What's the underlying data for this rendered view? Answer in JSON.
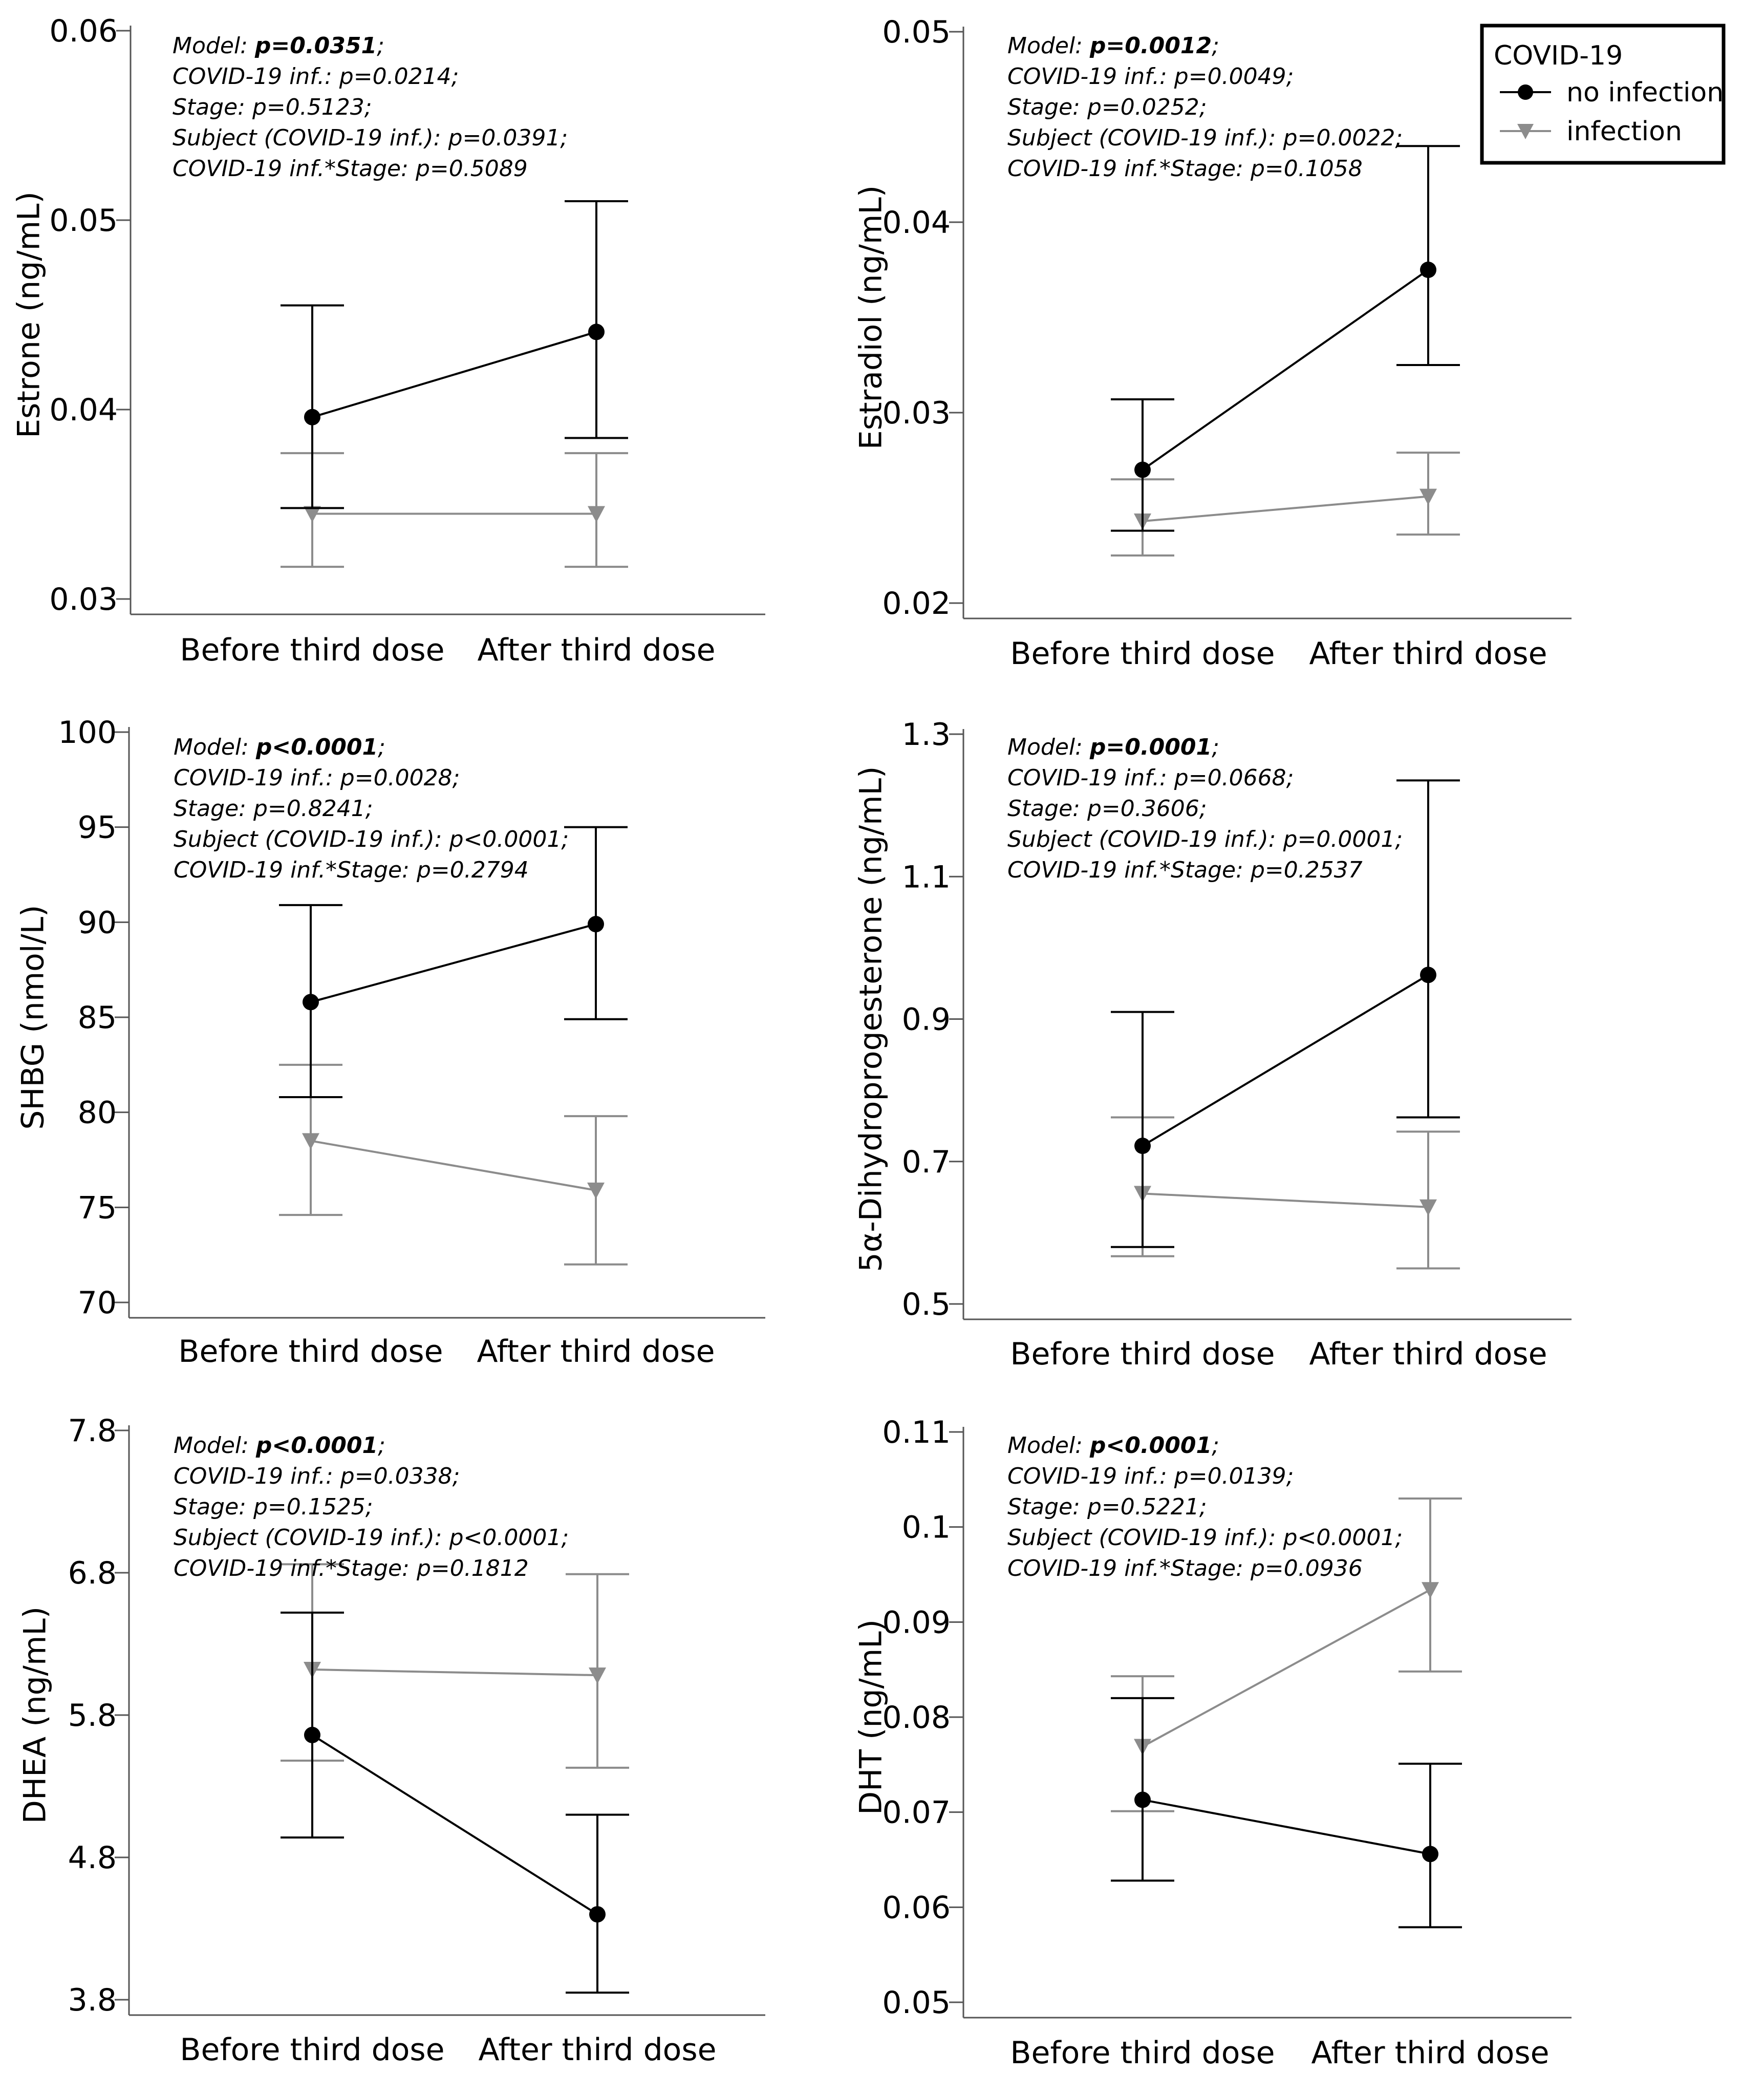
{
  "legend": {
    "title": "COVID-19",
    "entries": [
      {
        "label": "no infection",
        "color": "#000000",
        "marker": "circle"
      },
      {
        "label": "infection",
        "color": "#8c8c8c",
        "marker": "triangle-down"
      }
    ]
  },
  "chart_data": [
    {
      "type": "line",
      "ylabel": "Estrone (ng/mL)",
      "categories": [
        "Before third dose",
        "After third dose"
      ],
      "ylim": [
        0.03,
        0.06
      ],
      "yticks": [
        0.03,
        0.04,
        0.05,
        0.06
      ],
      "ytick_labels": [
        "0.03",
        "0.04",
        "0.05",
        "0.06"
      ],
      "series": [
        {
          "name": "no infection",
          "values": [
            0.0396,
            0.0441
          ],
          "lower": [
            0.0348,
            0.0385
          ],
          "upper": [
            0.0455,
            0.051
          ]
        },
        {
          "name": "infection",
          "values": [
            0.0345,
            0.0345
          ],
          "lower": [
            0.0317,
            0.0317
          ],
          "upper": [
            0.0377,
            0.0377
          ]
        }
      ],
      "stats": [
        {
          "label": "Model: ",
          "value": "p=0.0351",
          "bold": true,
          "suffix": ";"
        },
        {
          "label": "COVID-19 inf.: ",
          "value": "p=0.0214",
          "bold": false,
          "suffix": ";"
        },
        {
          "label": "Stage: ",
          "value": "p=0.5123",
          "bold": false,
          "suffix": ";"
        },
        {
          "label": "Subject (COVID-19 inf.): ",
          "value": "p=0.0391",
          "bold": false,
          "suffix": ";"
        },
        {
          "label": "COVID-19 inf.*Stage: ",
          "value": "p=0.5089",
          "bold": false,
          "suffix": ""
        }
      ]
    },
    {
      "type": "line",
      "ylabel": "Estradiol (ng/mL)",
      "categories": [
        "Before third dose",
        "After third dose"
      ],
      "ylim": [
        0.02,
        0.05
      ],
      "yticks": [
        0.02,
        0.03,
        0.04,
        0.05
      ],
      "ytick_labels": [
        "0.02",
        "0.03",
        "0.04",
        "0.05"
      ],
      "series": [
        {
          "name": "no infection",
          "values": [
            0.027,
            0.0375
          ],
          "lower": [
            0.0238,
            0.0325
          ],
          "upper": [
            0.0307,
            0.044
          ]
        },
        {
          "name": "infection",
          "values": [
            0.0243,
            0.0256
          ],
          "lower": [
            0.0225,
            0.0236
          ],
          "upper": [
            0.0265,
            0.0279
          ]
        }
      ],
      "stats": [
        {
          "label": "Model: ",
          "value": "p=0.0012",
          "bold": true,
          "suffix": ";"
        },
        {
          "label": "COVID-19 inf.: ",
          "value": "p=0.0049",
          "bold": false,
          "suffix": ";"
        },
        {
          "label": "Stage: ",
          "value": "p=0.0252",
          "bold": false,
          "suffix": ";"
        },
        {
          "label": "Subject (COVID-19 inf.): ",
          "value": "p=0.0022",
          "bold": false,
          "suffix": ";"
        },
        {
          "label": "COVID-19 inf.*Stage: ",
          "value": "p=0.1058",
          "bold": false,
          "suffix": ""
        }
      ]
    },
    {
      "type": "line",
      "ylabel": "SHBG (nmol/L)",
      "categories": [
        "Before third dose",
        "After third dose"
      ],
      "ylim": [
        70,
        100
      ],
      "yticks": [
        70,
        75,
        80,
        85,
        90,
        95,
        100
      ],
      "ytick_labels": [
        "70",
        "75",
        "80",
        "85",
        "90",
        "95",
        "100"
      ],
      "series": [
        {
          "name": "no infection",
          "values": [
            85.8,
            89.9
          ],
          "lower": [
            80.8,
            84.9
          ],
          "upper": [
            90.9,
            95.0
          ]
        },
        {
          "name": "infection",
          "values": [
            78.5,
            75.9
          ],
          "lower": [
            74.6,
            72.0
          ],
          "upper": [
            82.5,
            79.8
          ]
        }
      ],
      "stats": [
        {
          "label": "Model: ",
          "value": "p<0.0001",
          "bold": true,
          "suffix": ";"
        },
        {
          "label": "COVID-19 inf.: ",
          "value": "p=0.0028",
          "bold": false,
          "suffix": ";"
        },
        {
          "label": "Stage: ",
          "value": "p=0.8241",
          "bold": false,
          "suffix": ";"
        },
        {
          "label": "Subject (COVID-19 inf.): ",
          "value": "p<0.0001",
          "bold": false,
          "suffix": ";"
        },
        {
          "label": "COVID-19 inf.*Stage: ",
          "value": "p=0.2794",
          "bold": false,
          "suffix": ""
        }
      ]
    },
    {
      "type": "line",
      "ylabel": "5α-Dihydroprogesterone (ng/mL)",
      "categories": [
        "Before third dose",
        "After third dose"
      ],
      "ylim": [
        0.5,
        1.3
      ],
      "yticks": [
        0.5,
        0.7,
        0.9,
        1.1,
        1.3
      ],
      "ytick_labels": [
        "0.5",
        "0.7",
        "0.9",
        "1.1",
        "1.3"
      ],
      "series": [
        {
          "name": "no infection",
          "values": [
            0.722,
            0.962
          ],
          "lower": [
            0.58,
            0.762
          ],
          "upper": [
            0.91,
            1.235
          ]
        },
        {
          "name": "infection",
          "values": [
            0.655,
            0.636
          ],
          "lower": [
            0.567,
            0.55
          ],
          "upper": [
            0.762,
            0.742
          ]
        }
      ],
      "stats": [
        {
          "label": "Model: ",
          "value": "p=0.0001",
          "bold": true,
          "suffix": ";"
        },
        {
          "label": "COVID-19 inf.: ",
          "value": "p=0.0668",
          "bold": false,
          "suffix": ";"
        },
        {
          "label": "Stage: ",
          "value": "p=0.3606",
          "bold": false,
          "suffix": ";"
        },
        {
          "label": "Subject (COVID-19 inf.): ",
          "value": "p=0.0001",
          "bold": false,
          "suffix": ";"
        },
        {
          "label": "COVID-19 inf.*Stage: ",
          "value": "p=0.2537",
          "bold": false,
          "suffix": ""
        }
      ]
    },
    {
      "type": "line",
      "ylabel": "DHEA (ng/mL)",
      "categories": [
        "Before third dose",
        "After third dose"
      ],
      "ylim": [
        3.8,
        7.8
      ],
      "yticks": [
        3.8,
        4.8,
        5.8,
        6.8,
        7.8
      ],
      "ytick_labels": [
        "3.8",
        "4.8",
        "5.8",
        "6.8",
        "7.8"
      ],
      "series": [
        {
          "name": "no infection",
          "values": [
            5.66,
            4.4
          ],
          "lower": [
            4.94,
            3.85
          ],
          "upper": [
            6.52,
            5.1
          ]
        },
        {
          "name": "infection",
          "values": [
            6.12,
            6.08
          ],
          "lower": [
            5.48,
            5.43
          ],
          "upper": [
            6.86,
            6.79
          ]
        }
      ],
      "stats": [
        {
          "label": "Model: ",
          "value": "p<0.0001",
          "bold": true,
          "suffix": ";"
        },
        {
          "label": "COVID-19 inf.: ",
          "value": "p=0.0338",
          "bold": false,
          "suffix": ";"
        },
        {
          "label": "Stage: ",
          "value": "p=0.1525",
          "bold": false,
          "suffix": ";"
        },
        {
          "label": "Subject (COVID-19 inf.): ",
          "value": "p<0.0001",
          "bold": false,
          "suffix": ";"
        },
        {
          "label": "COVID-19 inf.*Stage: ",
          "value": "p=0.1812",
          "bold": false,
          "suffix": ""
        }
      ]
    },
    {
      "type": "line",
      "ylabel": "DHT (ng/mL)",
      "categories": [
        "Before third dose",
        "After third dose"
      ],
      "ylim": [
        0.05,
        0.11
      ],
      "yticks": [
        0.05,
        0.06,
        0.07,
        0.08,
        0.09,
        0.1,
        0.11
      ],
      "ytick_labels": [
        "0.05",
        "0.06",
        "0.07",
        "0.08",
        "0.09",
        "0.1",
        "0.11"
      ],
      "series": [
        {
          "name": "no infection",
          "values": [
            0.0713,
            0.0656
          ],
          "lower": [
            0.0628,
            0.0579
          ],
          "upper": [
            0.082,
            0.0751
          ]
        },
        {
          "name": "infection",
          "values": [
            0.0769,
            0.0934
          ],
          "lower": [
            0.0701,
            0.0848
          ],
          "upper": [
            0.0843,
            0.103
          ]
        }
      ],
      "stats": [
        {
          "label": "Model: ",
          "value": "p<0.0001",
          "bold": true,
          "suffix": ";"
        },
        {
          "label": "COVID-19 inf.: ",
          "value": "p=0.0139",
          "bold": false,
          "suffix": ";"
        },
        {
          "label": "Stage: ",
          "value": "p=0.5221",
          "bold": false,
          "suffix": ";"
        },
        {
          "label": "Subject (COVID-19 inf.): ",
          "value": "p<0.0001",
          "bold": false,
          "suffix": ";"
        },
        {
          "label": "COVID-19 inf.*Stage: ",
          "value": "p=0.0936",
          "bold": false,
          "suffix": ""
        }
      ]
    }
  ]
}
